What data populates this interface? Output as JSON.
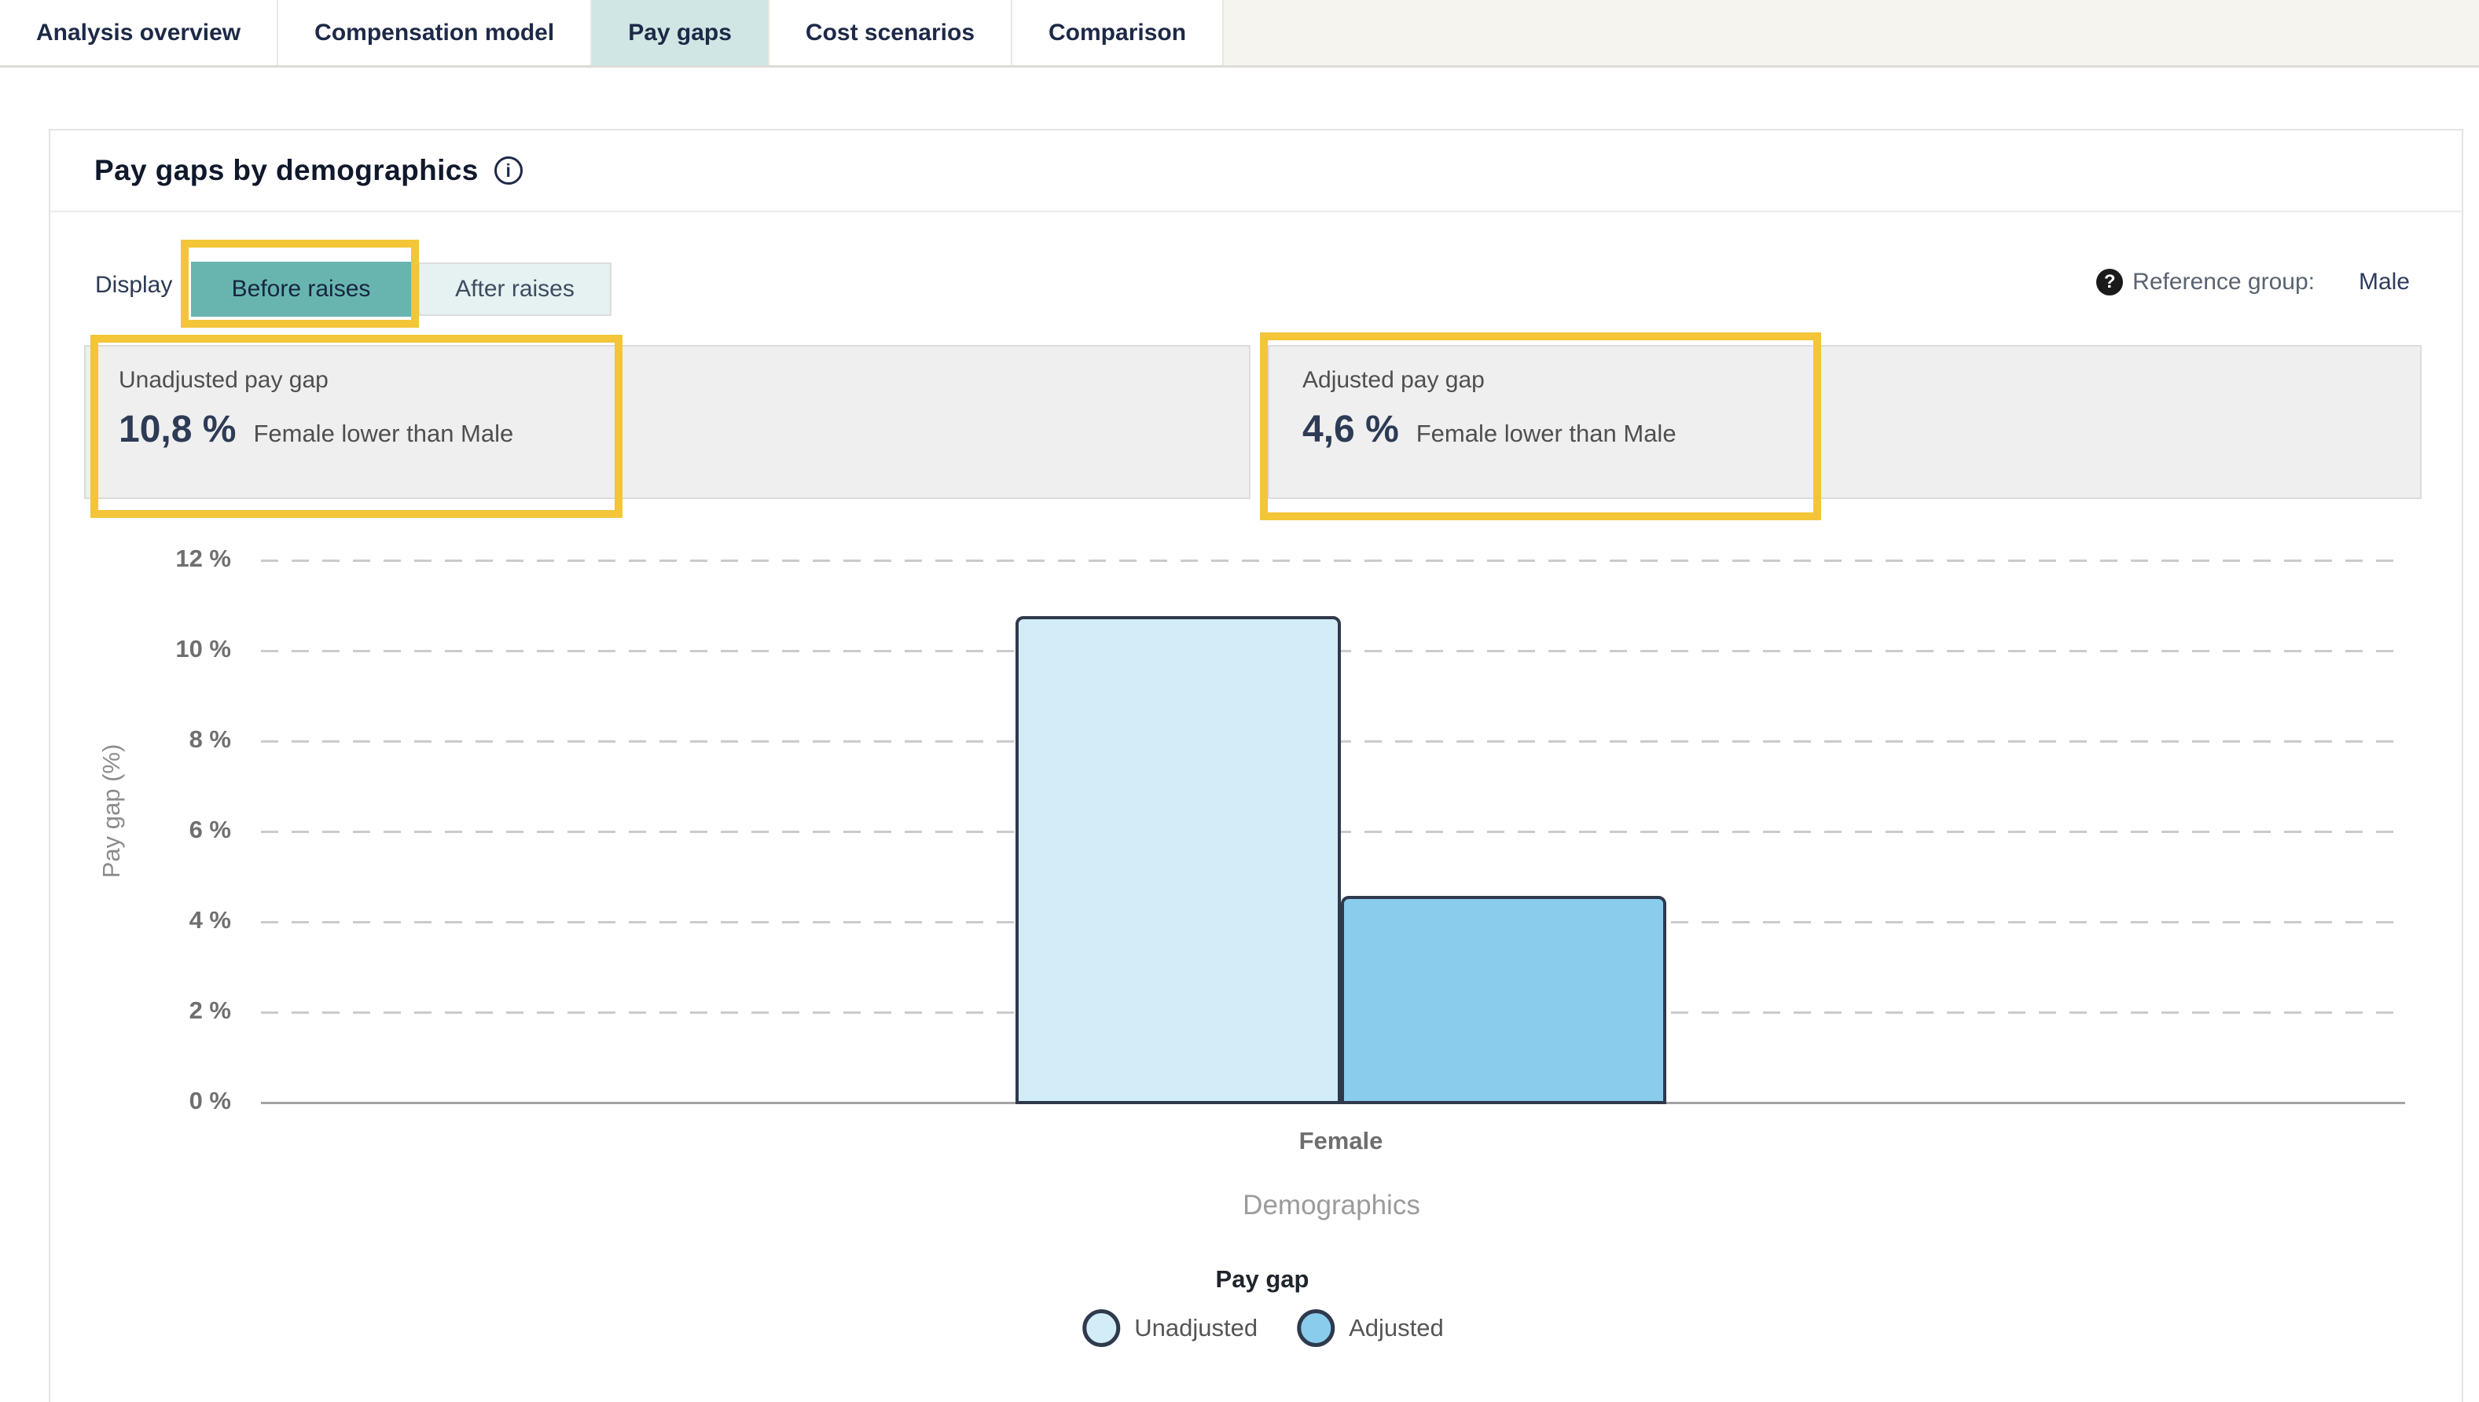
{
  "tabs": {
    "items": [
      {
        "label": "Analysis overview",
        "active": false
      },
      {
        "label": "Compensation model",
        "active": false
      },
      {
        "label": "Pay gaps",
        "active": true
      },
      {
        "label": "Cost scenarios",
        "active": false
      },
      {
        "label": "Comparison",
        "active": false
      }
    ],
    "active_tab_color": "#cfe6e4"
  },
  "card": {
    "title": "Pay gaps by demographics"
  },
  "icons": {
    "info": "i",
    "help": "?"
  },
  "controls": {
    "display_label": "Display",
    "before_label": "Before raises",
    "after_label": "After raises",
    "selected_display": "Before raises",
    "button_active_color": "#68b5b0",
    "reference_label": "Reference group:",
    "reference_value": "Male"
  },
  "annotations": {
    "highlight_color": "#f3c537",
    "highlighted": [
      "Before raises toggle",
      "Unadjusted pay gap stat",
      "Adjusted pay gap stat"
    ]
  },
  "stats": {
    "unadjusted": {
      "label": "Unadjusted pay gap",
      "value": "10,8 %",
      "suffix": "Female lower than Male"
    },
    "adjusted": {
      "label": "Adjusted pay gap",
      "value": "4,6 %",
      "suffix": "Female lower than Male"
    }
  },
  "chart_data": {
    "type": "bar",
    "categories": [
      "Female"
    ],
    "series": [
      {
        "name": "Unadjusted",
        "value": 10.8,
        "color": "#d2ecf8"
      },
      {
        "name": "Adjusted",
        "value": 4.6,
        "color": "#8accec"
      }
    ],
    "bar_border_color": "#2e3a4c",
    "title": "",
    "xlabel": "Demographics",
    "ylabel": "Pay gap (%)",
    "ylim": [
      0,
      12
    ],
    "ytick_step": 2,
    "ytick_labels": [
      "12 %",
      "10 %",
      "8 %",
      "6 %",
      "4 %",
      "2 %",
      "0 %"
    ],
    "grid": "dashed horizontal, solid baseline at 0 %",
    "legend_title": "Pay gap",
    "legend_position": "bottom-center"
  }
}
